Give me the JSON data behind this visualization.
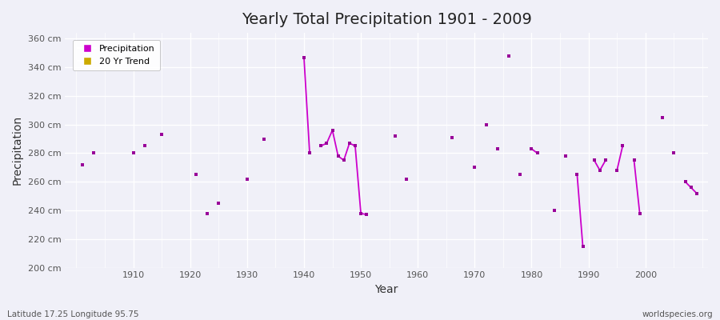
{
  "title": "Yearly Total Precipitation 1901 - 2009",
  "xlabel": "Year",
  "ylabel": "Precipitation",
  "subtitle": "Latitude 17.25 Longitude 95.75",
  "watermark": "worldspecies.org",
  "line_color": "#cc00cc",
  "marker_color": "#990099",
  "legend_precip_color": "#cc00cc",
  "legend_trend_color": "#ccaa00",
  "background_color": "#f0f0f8",
  "plot_bg_color": "#f0f0f8",
  "ylim": [
    200,
    364
  ],
  "yticks": [
    200,
    220,
    240,
    260,
    280,
    300,
    320,
    340,
    360
  ],
  "ytick_labels": [
    "200 cm",
    "220 cm",
    "240 cm",
    "260 cm",
    "280 cm",
    "300 cm",
    "320 cm",
    "340 cm",
    "360 cm"
  ],
  "xticks": [
    1910,
    1920,
    1930,
    1940,
    1950,
    1960,
    1970,
    1980,
    1990,
    2000
  ],
  "years": [
    1901,
    1902,
    1903,
    1904,
    1905,
    1906,
    1907,
    1908,
    1909,
    1910,
    1911,
    1912,
    1913,
    1914,
    1915,
    1916,
    1917,
    1918,
    1919,
    1920,
    1921,
    1922,
    1923,
    1924,
    1925,
    1926,
    1927,
    1928,
    1929,
    1930,
    1931,
    1932,
    1933,
    1934,
    1935,
    1936,
    1937,
    1938,
    1939,
    1940,
    1941,
    1942,
    1943,
    1944,
    1945,
    1946,
    1947,
    1948,
    1949,
    1950,
    1951,
    1952,
    1953,
    1954,
    1955,
    1956,
    1957,
    1958,
    1959,
    1960,
    1961,
    1962,
    1963,
    1964,
    1965,
    1966,
    1967,
    1968,
    1969,
    1970,
    1971,
    1972,
    1973,
    1974,
    1975,
    1976,
    1977,
    1978,
    1979,
    1980,
    1981,
    1982,
    1983,
    1984,
    1985,
    1986,
    1987,
    1988,
    1989,
    1990,
    1991,
    1992,
    1993,
    1994,
    1995,
    1996,
    1997,
    1998,
    1999,
    2000,
    2001,
    2002,
    2003,
    2004,
    2005,
    2006,
    2007,
    2008,
    2009
  ],
  "precip": [
    272,
    null,
    280,
    null,
    null,
    null,
    null,
    null,
    null,
    280,
    null,
    285,
    null,
    null,
    293,
    null,
    null,
    null,
    null,
    null,
    265,
    null,
    238,
    null,
    245,
    null,
    null,
    null,
    null,
    262,
    null,
    null,
    290,
    null,
    null,
    null,
    null,
    null,
    null,
    347,
    280,
    null,
    285,
    287,
    296,
    278,
    275,
    287,
    285,
    238,
    237,
    null,
    null,
    null,
    null,
    292,
    null,
    262,
    null,
    null,
    null,
    null,
    null,
    null,
    null,
    291,
    null,
    null,
    null,
    270,
    null,
    300,
    null,
    283,
    null,
    348,
    null,
    265,
    null,
    283,
    280,
    null,
    null,
    240,
    null,
    278,
    null,
    265,
    215,
    null,
    275,
    268,
    275,
    null,
    268,
    285,
    null,
    275,
    238,
    null,
    null,
    null,
    305,
    null,
    280,
    null,
    260,
    256,
    252
  ]
}
